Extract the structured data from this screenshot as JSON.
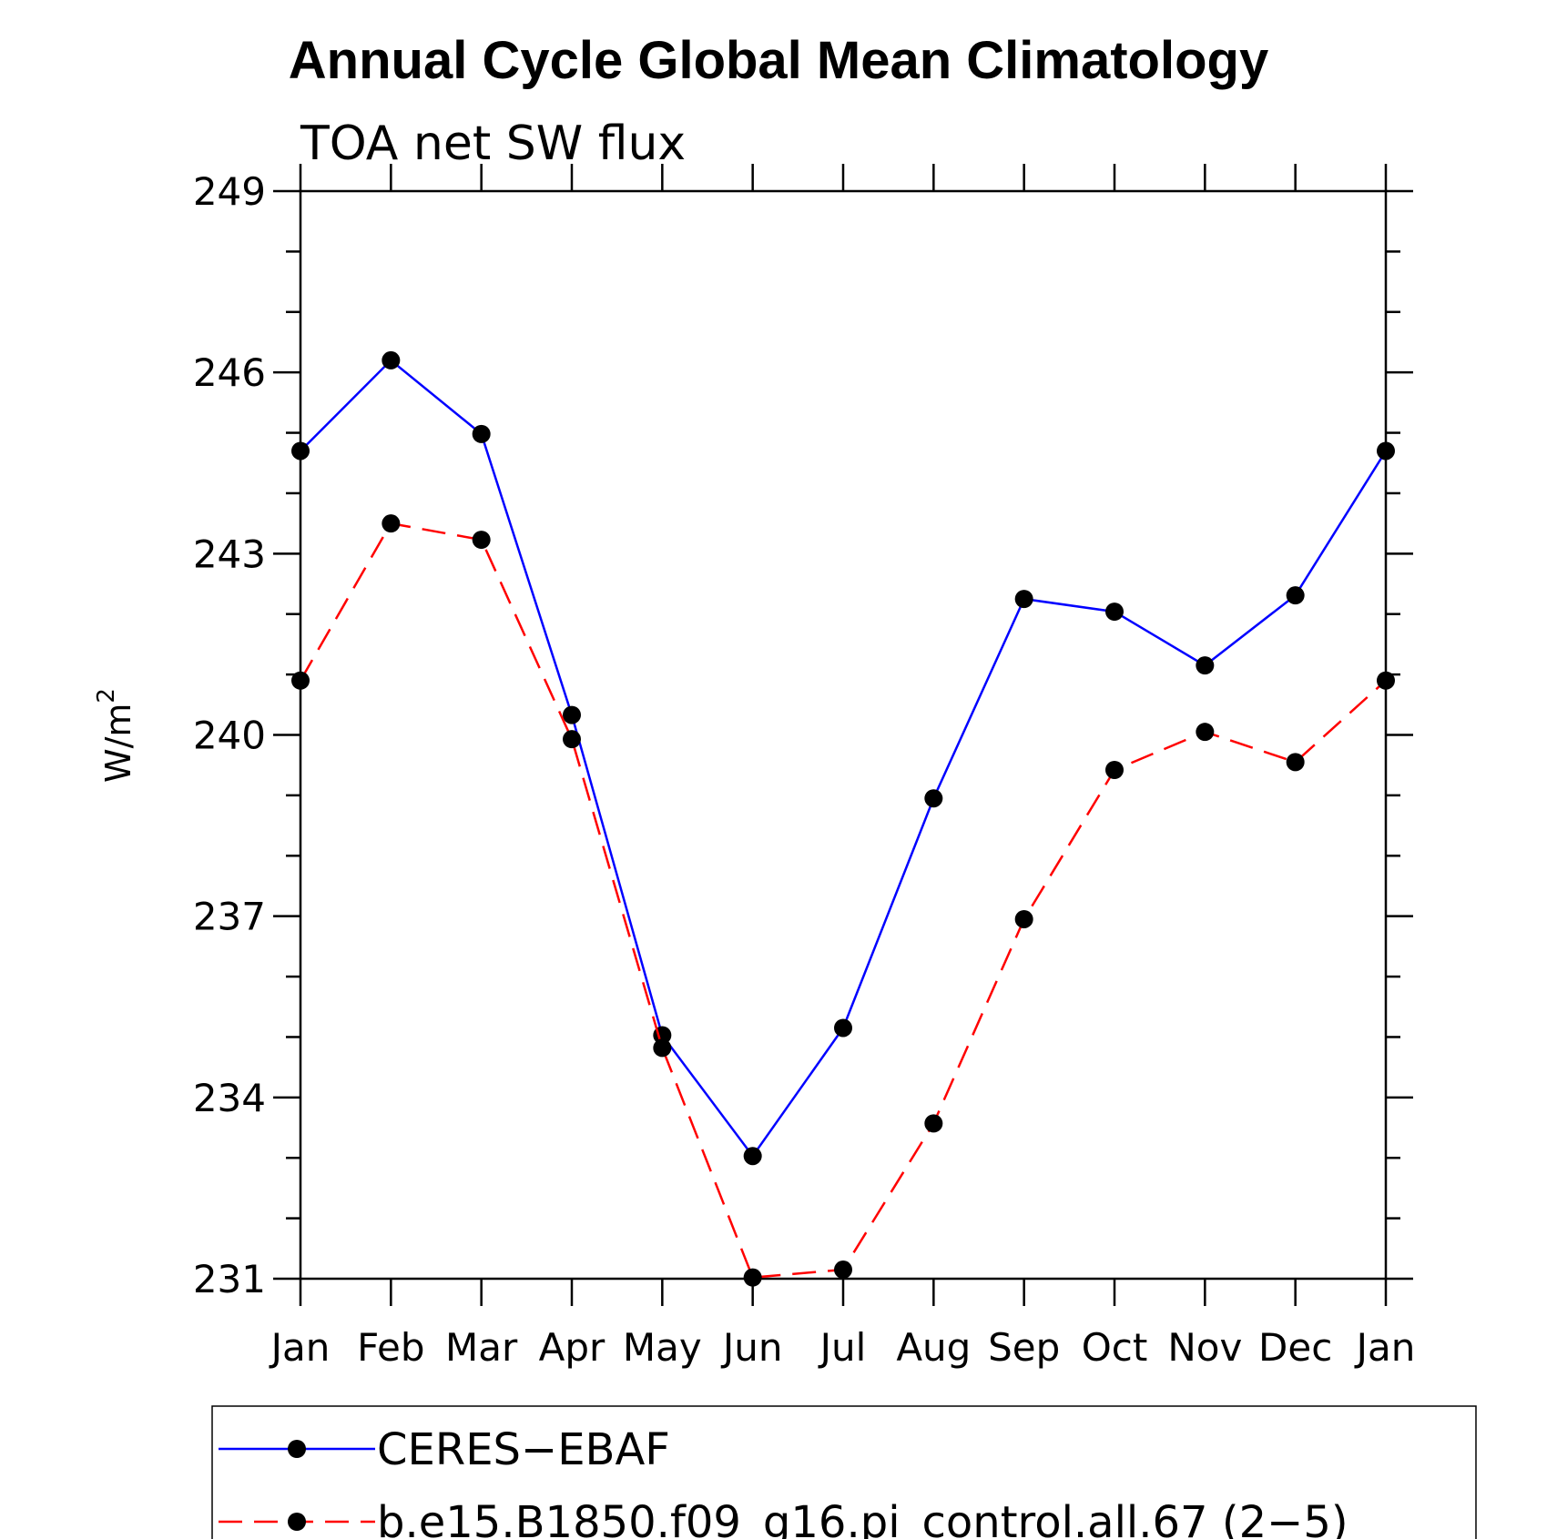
{
  "chart_data": {
    "type": "line",
    "title": "Annual Cycle Global Mean Climatology",
    "subtitle": "TOA net SW flux",
    "ylabel": "W/m",
    "ylabel_superscript": "2",
    "xlabel": "",
    "categories": [
      "Jan",
      "Feb",
      "Mar",
      "Apr",
      "May",
      "Jun",
      "Jul",
      "Aug",
      "Sep",
      "Oct",
      "Nov",
      "Dec",
      "Jan"
    ],
    "ylim": [
      231,
      249
    ],
    "yticks": [
      231,
      234,
      237,
      240,
      243,
      246,
      249
    ],
    "y_minor_step": 1,
    "grid": false,
    "legend_position": "bottom",
    "series": [
      {
        "name": "CERES−EBAF",
        "color": "#0000ff",
        "dashed": false,
        "values": [
          244.7,
          246.2,
          244.98,
          240.33,
          235.03,
          233.03,
          235.15,
          238.95,
          242.25,
          242.04,
          241.15,
          242.31,
          244.7
        ]
      },
      {
        "name": "b.e15.B1850.f09_g16.pi_control.all.67 (2−5)",
        "color": "#ff0000",
        "dashed": true,
        "values": [
          240.9,
          243.5,
          243.23,
          239.93,
          234.82,
          231.02,
          231.15,
          233.57,
          236.95,
          239.42,
          240.05,
          239.55,
          240.9
        ]
      }
    ]
  }
}
